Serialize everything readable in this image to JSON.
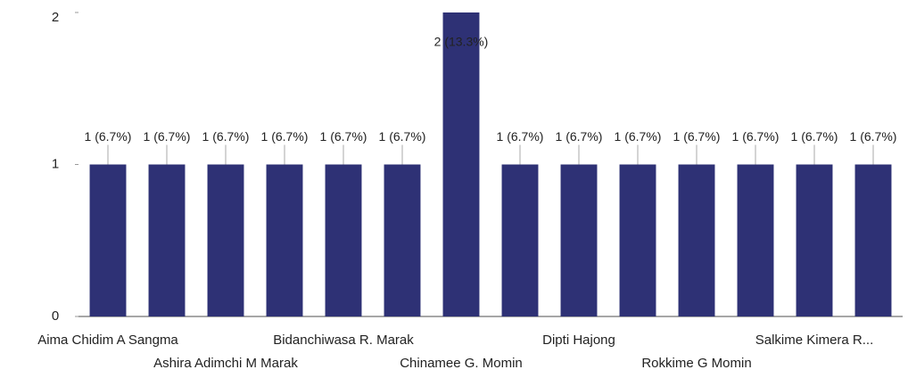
{
  "chart_data": {
    "type": "bar",
    "categories": [
      "Aima Chidim A Sangma",
      null,
      "Ashira Adimchi M Marak",
      null,
      "Bidanchiwasa R. Marak",
      null,
      "Chinamee G. Momin",
      null,
      "Dipti Hajong",
      null,
      "Rokkime G Momin",
      null,
      "Salkime Kimera R...",
      null
    ],
    "values": [
      1,
      1,
      1,
      1,
      1,
      1,
      2,
      1,
      1,
      1,
      1,
      1,
      1,
      1
    ],
    "value_labels": [
      "1 (6.7%)",
      "1 (6.7%)",
      "1 (6.7%)",
      "1 (6.7%)",
      "1 (6.7%)",
      "1 (6.7%)",
      "2 (13.3%)",
      "1 (6.7%)",
      "1 (6.7%)",
      "1 (6.7%)",
      "1 (6.7%)",
      "1 (6.7%)",
      "1 (6.7%)",
      "1 (6.7%)"
    ],
    "color": "#2e3175",
    "ylim": [
      0,
      2
    ],
    "yticks": [
      0,
      1,
      2
    ],
    "grid": false
  }
}
